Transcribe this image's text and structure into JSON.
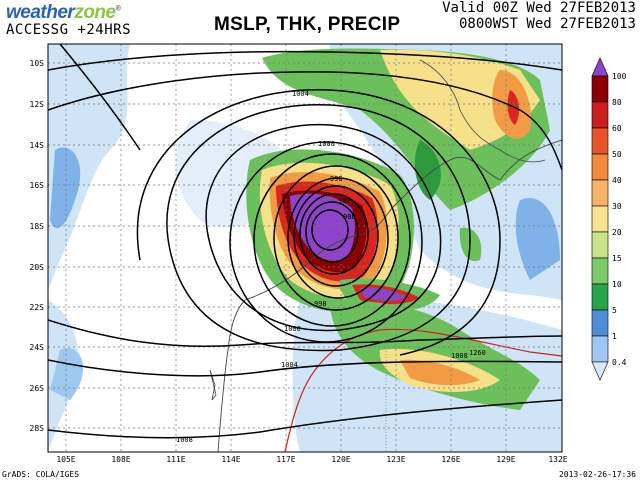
{
  "header": {
    "logo_part1": "weather",
    "logo_part2": "zone",
    "logo_reg": "®",
    "model_run": "ACCESSG +24HRS",
    "title": "MSLP, THK, PRECIP",
    "valid_line1": "Valid 00Z Wed 27FEB2013",
    "valid_line2": "0800WST Wed 27FEB2013"
  },
  "footer": {
    "credit": "GrADS: COLA/IGES",
    "timestamp": "2013-02-26-17:36"
  },
  "map": {
    "lat_labels": [
      "10S",
      "12S",
      "14S",
      "16S",
      "18S",
      "20S",
      "22S",
      "24S",
      "26S",
      "28S"
    ],
    "lon_labels": [
      "105E",
      "108E",
      "111E",
      "114E",
      "117E",
      "120E",
      "123E",
      "126E",
      "129E",
      "132E"
    ],
    "isobar_labels": [
      "1004",
      "1000",
      "996",
      "992",
      "988",
      "998",
      "1000",
      "1004",
      "1008",
      "1008",
      "1260"
    ],
    "colorbar_labels": [
      "100",
      "80",
      "60",
      "50",
      "40",
      "30",
      "20",
      "15",
      "10",
      "5",
      "1",
      "0.4"
    ],
    "colorbar_colors": [
      "#8e44c9",
      "#8b0000",
      "#c81e1e",
      "#e8542a",
      "#f08a3c",
      "#f6b26b",
      "#f8e08c",
      "#c9e58a",
      "#7cc96a",
      "#2aa64a",
      "#4d8fd6",
      "#9ec8f0",
      "#d8e9f8"
    ],
    "colors": {
      "light_blue": "#cfe4f7",
      "mid_blue": "#7fb2e8",
      "green": "#6cc05c",
      "dark_green": "#2e9a3e",
      "yellow": "#f6e08a",
      "orange": "#f19b45",
      "red": "#d6281e",
      "dark_red": "#8b0000",
      "purple": "#8e44c9",
      "coast": "#555555",
      "thickness_line": "#d02020"
    }
  }
}
